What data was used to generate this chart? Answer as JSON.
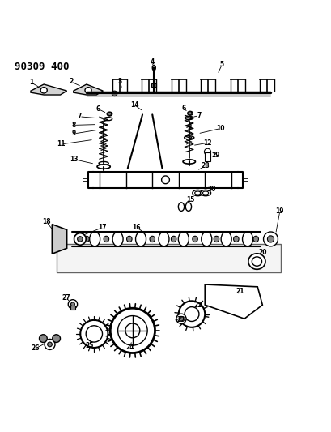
{
  "title": "90309 400",
  "bg_color": "#ffffff",
  "line_color": "#000000",
  "fig_width": 4.09,
  "fig_height": 5.33,
  "dpi": 100
}
